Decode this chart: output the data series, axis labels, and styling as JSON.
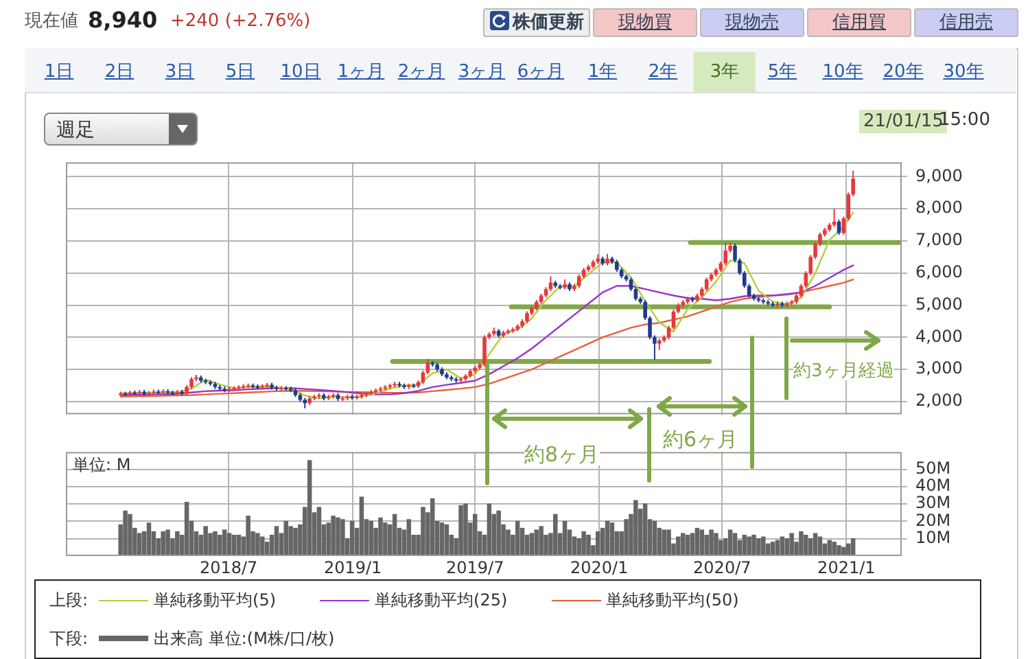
{
  "chart_data": [
    {
      "type": "candlestick",
      "legend": "bottom",
      "legend_title": "上段:",
      "grid": true,
      "tick_labels": "y",
      "marker": "none",
      "annotations": [
        "約8ヶ月",
        "約6ヶ月",
        "約3ヶ月経過",
        "現在値",
        "8,940",
        "+240 (+2.76%)",
        "株価更新",
        "現物買",
        "現物売",
        "信用買",
        "信用売",
        "1日",
        "2日",
        "3日",
        "5日",
        "10日",
        "1ヶ月",
        "2ヶ月",
        "3ヶ月",
        "6ヶ月",
        "1年",
        "2年",
        "3年",
        "5年",
        "10年",
        "20年",
        "30年",
        "週足",
        "21/01/15",
        "15:00"
      ],
      "xlim": [
        "2017-11-02",
        "2021-03-24"
      ],
      "xticks": [
        {
          "value": "2018-07-01",
          "label": null
        },
        {
          "value": "2019-01-01",
          "label": null
        },
        {
          "value": "2019-07-01",
          "label": null
        },
        {
          "value": "2020-01-01",
          "label": null
        },
        {
          "value": "2020-07-01",
          "label": null
        },
        {
          "value": "2021-01-01",
          "label": null
        }
      ],
      "ylim": [
        1600,
        9450
      ],
      "yticks": [
        {
          "value": 2000,
          "label": "2,000"
        },
        {
          "value": 3000,
          "label": "3,000"
        },
        {
          "value": 4000,
          "label": "4,000"
        },
        {
          "value": 5000,
          "label": "5,000"
        },
        {
          "value": 6000,
          "label": "6,000"
        },
        {
          "value": 7000,
          "label": "7,000"
        },
        {
          "value": 8000,
          "label": "8,000"
        },
        {
          "value": 9000,
          "label": "9,000"
        }
      ],
      "x": [
        "2018-01-22",
        "2018-01-29",
        "2018-02-05",
        "2018-02-12",
        "2018-02-19",
        "2018-02-26",
        "2018-03-05",
        "2018-03-12",
        "2018-03-19",
        "2018-03-26",
        "2018-04-02",
        "2018-04-09",
        "2018-04-16",
        "2018-04-23",
        "2018-04-30",
        "2018-05-07",
        "2018-05-14",
        "2018-05-21",
        "2018-05-28",
        "2018-06-04",
        "2018-06-11",
        "2018-06-18",
        "2018-06-25",
        "2018-07-02",
        "2018-07-09",
        "2018-07-16",
        "2018-07-23",
        "2018-07-30",
        "2018-08-06",
        "2018-08-13",
        "2018-08-20",
        "2018-08-27",
        "2018-09-03",
        "2018-09-10",
        "2018-09-17",
        "2018-09-24",
        "2018-10-01",
        "2018-10-08",
        "2018-10-15",
        "2018-10-22",
        "2018-10-29",
        "2018-11-05",
        "2018-11-12",
        "2018-11-19",
        "2018-11-26",
        "2018-12-03",
        "2018-12-10",
        "2018-12-17",
        "2018-12-24",
        "2018-12-31",
        "2019-01-07",
        "2019-01-14",
        "2019-01-21",
        "2019-01-28",
        "2019-02-04",
        "2019-02-11",
        "2019-02-18",
        "2019-02-25",
        "2019-03-04",
        "2019-03-11",
        "2019-03-18",
        "2019-03-25",
        "2019-04-01",
        "2019-04-08",
        "2019-04-15",
        "2019-04-22",
        "2019-04-29",
        "2019-05-06",
        "2019-05-13",
        "2019-05-20",
        "2019-05-27",
        "2019-06-03",
        "2019-06-10",
        "2019-06-17",
        "2019-06-24",
        "2019-07-01",
        "2019-07-08",
        "2019-07-15",
        "2019-07-22",
        "2019-07-29",
        "2019-08-05",
        "2019-08-12",
        "2019-08-19",
        "2019-08-26",
        "2019-09-02",
        "2019-09-09",
        "2019-09-16",
        "2019-09-23",
        "2019-09-30",
        "2019-10-07",
        "2019-10-14",
        "2019-10-21",
        "2019-10-28",
        "2019-11-04",
        "2019-11-11",
        "2019-11-18",
        "2019-11-25",
        "2019-12-02",
        "2019-12-09",
        "2019-12-16",
        "2019-12-23",
        "2019-12-30",
        "2020-01-06",
        "2020-01-13",
        "2020-01-20",
        "2020-01-27",
        "2020-02-03",
        "2020-02-10",
        "2020-02-17",
        "2020-02-24",
        "2020-03-02",
        "2020-03-09",
        "2020-03-16",
        "2020-03-23",
        "2020-03-30",
        "2020-04-06",
        "2020-04-13",
        "2020-04-20",
        "2020-04-27",
        "2020-05-04",
        "2020-05-11",
        "2020-05-18",
        "2020-05-25",
        "2020-06-01",
        "2020-06-08",
        "2020-06-15",
        "2020-06-22",
        "2020-06-29",
        "2020-07-06",
        "2020-07-13",
        "2020-07-20",
        "2020-07-27",
        "2020-08-03",
        "2020-08-10",
        "2020-08-17",
        "2020-08-24",
        "2020-08-31",
        "2020-09-07",
        "2020-09-14",
        "2020-09-21",
        "2020-09-28",
        "2020-10-05",
        "2020-10-12",
        "2020-10-19",
        "2020-10-26",
        "2020-11-02",
        "2020-11-09",
        "2020-11-16",
        "2020-11-23",
        "2020-11-30",
        "2020-12-07",
        "2020-12-14",
        "2020-12-21",
        "2020-12-28",
        "2021-01-04",
        "2021-01-11"
      ],
      "ohlc": [
        [
          2240,
          2310,
          2180,
          2250
        ],
        [
          2250,
          2300,
          2170,
          2230
        ],
        [
          2230,
          2340,
          2170,
          2280
        ],
        [
          2280,
          2340,
          2200,
          2260
        ],
        [
          2260,
          2360,
          2200,
          2300
        ],
        [
          2300,
          2360,
          2180,
          2240
        ],
        [
          2240,
          2330,
          2180,
          2270
        ],
        [
          2270,
          2370,
          2210,
          2310
        ],
        [
          2310,
          2370,
          2230,
          2290
        ],
        [
          2290,
          2380,
          2230,
          2320
        ],
        [
          2320,
          2380,
          2220,
          2280
        ],
        [
          2280,
          2340,
          2200,
          2260
        ],
        [
          2260,
          2360,
          2200,
          2300
        ],
        [
          2300,
          2360,
          2190,
          2250
        ],
        [
          2250,
          2510,
          2190,
          2450
        ],
        [
          2450,
          2760,
          2390,
          2700
        ],
        [
          2700,
          2830,
          2640,
          2750
        ],
        [
          2750,
          2810,
          2590,
          2650
        ],
        [
          2650,
          2710,
          2540,
          2600
        ],
        [
          2600,
          2660,
          2490,
          2550
        ],
        [
          2550,
          2610,
          2390,
          2450
        ],
        [
          2450,
          2510,
          2340,
          2400
        ],
        [
          2400,
          2460,
          2290,
          2350
        ],
        [
          2350,
          2460,
          2290,
          2400
        ],
        [
          2400,
          2480,
          2340,
          2420
        ],
        [
          2420,
          2510,
          2360,
          2450
        ],
        [
          2450,
          2540,
          2390,
          2480
        ],
        [
          2480,
          2560,
          2420,
          2500
        ],
        [
          2500,
          2560,
          2410,
          2470
        ],
        [
          2470,
          2530,
          2390,
          2450
        ],
        [
          2450,
          2540,
          2390,
          2480
        ],
        [
          2480,
          2580,
          2420,
          2520
        ],
        [
          2520,
          2580,
          2370,
          2430
        ],
        [
          2430,
          2490,
          2340,
          2400
        ],
        [
          2400,
          2480,
          2340,
          2420
        ],
        [
          2420,
          2480,
          2340,
          2400
        ],
        [
          2400,
          2460,
          2290,
          2350
        ],
        [
          2350,
          2410,
          2140,
          2200
        ],
        [
          2200,
          2260,
          1990,
          2050
        ],
        [
          2050,
          2110,
          1790,
          1950
        ],
        [
          1950,
          2160,
          1890,
          2100
        ],
        [
          2100,
          2210,
          2040,
          2150
        ],
        [
          2150,
          2260,
          2090,
          2200
        ],
        [
          2200,
          2260,
          2040,
          2100
        ],
        [
          2100,
          2210,
          2040,
          2150
        ],
        [
          2150,
          2260,
          2090,
          2200
        ],
        [
          2200,
          2260,
          2020,
          2080
        ],
        [
          2080,
          2160,
          2020,
          2100
        ],
        [
          2100,
          2210,
          2040,
          2150
        ],
        [
          2150,
          2210,
          2060,
          2120
        ],
        [
          2120,
          2210,
          2060,
          2150
        ],
        [
          2150,
          2260,
          2090,
          2200
        ],
        [
          2200,
          2310,
          2140,
          2250
        ],
        [
          2250,
          2360,
          2190,
          2300
        ],
        [
          2300,
          2410,
          2240,
          2350
        ],
        [
          2350,
          2460,
          2290,
          2400
        ],
        [
          2400,
          2510,
          2340,
          2450
        ],
        [
          2450,
          2560,
          2390,
          2500
        ],
        [
          2500,
          2610,
          2440,
          2550
        ],
        [
          2550,
          2610,
          2440,
          2500
        ],
        [
          2500,
          2560,
          2390,
          2450
        ],
        [
          2450,
          2560,
          2390,
          2500
        ],
        [
          2500,
          2560,
          2420,
          2480
        ],
        [
          2480,
          2660,
          2420,
          2600
        ],
        [
          2600,
          2960,
          2540,
          2900
        ],
        [
          2900,
          3330,
          2840,
          3200
        ],
        [
          3200,
          3260,
          3090,
          3150
        ],
        [
          3150,
          3210,
          2940,
          3000
        ],
        [
          3000,
          3060,
          2790,
          2850
        ],
        [
          2850,
          2910,
          2690,
          2750
        ],
        [
          2750,
          2810,
          2640,
          2700
        ],
        [
          2700,
          2760,
          2590,
          2650
        ],
        [
          2650,
          2760,
          2590,
          2700
        ],
        [
          2700,
          2860,
          2640,
          2800
        ],
        [
          2800,
          3010,
          2740,
          2950
        ],
        [
          2950,
          3110,
          2890,
          3050
        ],
        [
          3050,
          3210,
          2990,
          3150
        ],
        [
          3150,
          4060,
          3090,
          4000
        ],
        [
          4000,
          4160,
          3940,
          4100
        ],
        [
          4100,
          4300,
          4040,
          4200
        ],
        [
          4200,
          4260,
          3990,
          4050
        ],
        [
          4050,
          4210,
          3990,
          4150
        ],
        [
          4150,
          4260,
          4090,
          4200
        ],
        [
          4200,
          4310,
          4140,
          4250
        ],
        [
          4250,
          4410,
          4190,
          4350
        ],
        [
          4350,
          4560,
          4290,
          4500
        ],
        [
          4500,
          4810,
          4440,
          4750
        ],
        [
          4750,
          4960,
          4690,
          4900
        ],
        [
          4900,
          5160,
          4840,
          5100
        ],
        [
          5100,
          5360,
          5040,
          5300
        ],
        [
          5300,
          5560,
          5240,
          5500
        ],
        [
          5500,
          5900,
          5440,
          5700
        ],
        [
          5700,
          5760,
          5540,
          5600
        ],
        [
          5600,
          5660,
          5490,
          5550
        ],
        [
          5550,
          5800,
          5490,
          5650
        ],
        [
          5650,
          5710,
          5440,
          5500
        ],
        [
          5500,
          5660,
          5440,
          5600
        ],
        [
          5600,
          5960,
          5540,
          5900
        ],
        [
          5900,
          6160,
          5840,
          6100
        ],
        [
          6100,
          6260,
          6040,
          6200
        ],
        [
          6200,
          6410,
          6140,
          6350
        ],
        [
          6350,
          6580,
          6290,
          6450
        ],
        [
          6450,
          6510,
          6240,
          6300
        ],
        [
          6300,
          6600,
          6240,
          6450
        ],
        [
          6450,
          6510,
          6290,
          6350
        ],
        [
          6350,
          6410,
          6040,
          6100
        ],
        [
          6100,
          6160,
          5840,
          5900
        ],
        [
          5900,
          5960,
          5740,
          5800
        ],
        [
          5800,
          5860,
          5440,
          5500
        ],
        [
          5500,
          5560,
          5140,
          5200
        ],
        [
          5200,
          5260,
          5040,
          5100
        ],
        [
          5100,
          5160,
          4540,
          4600
        ],
        [
          4600,
          4660,
          3940,
          4000
        ],
        [
          4000,
          4060,
          3300,
          3800
        ],
        [
          3800,
          3960,
          3600,
          3900
        ],
        [
          3900,
          4060,
          3840,
          4000
        ],
        [
          4000,
          4360,
          3940,
          4300
        ],
        [
          4300,
          4860,
          4240,
          4800
        ],
        [
          4800,
          5060,
          4740,
          5000
        ],
        [
          5000,
          5160,
          4940,
          5100
        ],
        [
          5100,
          5260,
          5040,
          5200
        ],
        [
          5200,
          5260,
          5090,
          5150
        ],
        [
          5150,
          5360,
          5090,
          5300
        ],
        [
          5300,
          5560,
          5240,
          5500
        ],
        [
          5500,
          5860,
          5440,
          5800
        ],
        [
          5800,
          6010,
          5740,
          5950
        ],
        [
          5950,
          6160,
          5890,
          6100
        ],
        [
          6100,
          6360,
          6040,
          6300
        ],
        [
          6300,
          6950,
          6240,
          6700
        ],
        [
          6700,
          6950,
          6640,
          6850
        ],
        [
          6850,
          6910,
          6340,
          6400
        ],
        [
          6400,
          6460,
          5940,
          6000
        ],
        [
          6000,
          6060,
          5540,
          5600
        ],
        [
          5600,
          5660,
          5240,
          5300
        ],
        [
          5300,
          5360,
          5140,
          5200
        ],
        [
          5200,
          5260,
          5090,
          5150
        ],
        [
          5150,
          5210,
          5040,
          5100
        ],
        [
          5100,
          5160,
          4990,
          5050
        ],
        [
          5050,
          5110,
          4940,
          5000
        ],
        [
          5000,
          5110,
          4940,
          5050
        ],
        [
          5050,
          5110,
          4940,
          5000
        ],
        [
          5000,
          5110,
          4940,
          5050
        ],
        [
          5050,
          5160,
          4990,
          5100
        ],
        [
          5100,
          5360,
          5040,
          5300
        ],
        [
          5300,
          5660,
          5240,
          5600
        ],
        [
          5600,
          6060,
          5540,
          6000
        ],
        [
          6000,
          6560,
          5940,
          6500
        ],
        [
          6500,
          6960,
          6440,
          6900
        ],
        [
          6900,
          7260,
          6840,
          7200
        ],
        [
          7200,
          7410,
          7140,
          7350
        ],
        [
          7350,
          7560,
          7290,
          7500
        ],
        [
          7500,
          8000,
          7440,
          7600
        ],
        [
          7600,
          7660,
          7190,
          7250
        ],
        [
          7250,
          7760,
          7190,
          7700
        ],
        [
          7700,
          8510,
          7640,
          8450
        ],
        [
          8450,
          9180,
          8390,
          8940
        ]
      ],
      "colors": [
        "#e8383d",
        "#1f3b8c",
        "#e8383d",
        "#1f3b8c",
        "#e8383d",
        "#1f3b8c",
        "#e8383d",
        "#e8383d",
        "#1f3b8c",
        "#e8383d",
        "#1f3b8c",
        "#1f3b8c",
        "#e8383d",
        "#1f3b8c",
        "#e8383d",
        "#e8383d",
        "#e8383d",
        "#1f3b8c",
        "#1f3b8c",
        "#1f3b8c",
        "#1f3b8c",
        "#1f3b8c",
        "#1f3b8c",
        "#e8383d",
        "#e8383d",
        "#e8383d",
        "#e8383d",
        "#e8383d",
        "#1f3b8c",
        "#1f3b8c",
        "#e8383d",
        "#e8383d",
        "#1f3b8c",
        "#1f3b8c",
        "#e8383d",
        "#1f3b8c",
        "#1f3b8c",
        "#1f3b8c",
        "#1f3b8c",
        "#1f3b8c",
        "#e8383d",
        "#e8383d",
        "#e8383d",
        "#1f3b8c",
        "#e8383d",
        "#e8383d",
        "#1f3b8c",
        "#e8383d",
        "#e8383d",
        "#1f3b8c",
        "#e8383d",
        "#e8383d",
        "#e8383d",
        "#e8383d",
        "#e8383d",
        "#e8383d",
        "#e8383d",
        "#e8383d",
        "#e8383d",
        "#1f3b8c",
        "#1f3b8c",
        "#e8383d",
        "#1f3b8c",
        "#e8383d",
        "#e8383d",
        "#e8383d",
        "#1f3b8c",
        "#1f3b8c",
        "#1f3b8c",
        "#1f3b8c",
        "#1f3b8c",
        "#1f3b8c",
        "#e8383d",
        "#e8383d",
        "#e8383d",
        "#e8383d",
        "#e8383d",
        "#e8383d",
        "#e8383d",
        "#e8383d",
        "#1f3b8c",
        "#e8383d",
        "#e8383d",
        "#e8383d",
        "#e8383d",
        "#e8383d",
        "#e8383d",
        "#e8383d",
        "#e8383d",
        "#e8383d",
        "#e8383d",
        "#e8383d",
        "#1f3b8c",
        "#1f3b8c",
        "#e8383d",
        "#1f3b8c",
        "#e8383d",
        "#e8383d",
        "#e8383d",
        "#e8383d",
        "#e8383d",
        "#e8383d",
        "#1f3b8c",
        "#e8383d",
        "#1f3b8c",
        "#1f3b8c",
        "#1f3b8c",
        "#1f3b8c",
        "#1f3b8c",
        "#1f3b8c",
        "#1f3b8c",
        "#1f3b8c",
        "#1f3b8c",
        "#1f3b8c",
        "#e8383d",
        "#e8383d",
        "#e8383d",
        "#e8383d",
        "#e8383d",
        "#e8383d",
        "#e8383d",
        "#1f3b8c",
        "#e8383d",
        "#e8383d",
        "#e8383d",
        "#e8383d",
        "#e8383d",
        "#e8383d",
        "#e8383d",
        "#e8383d",
        "#1f3b8c",
        "#1f3b8c",
        "#1f3b8c",
        "#1f3b8c",
        "#1f3b8c",
        "#1f3b8c",
        "#1f3b8c",
        "#1f3b8c",
        "#1f3b8c",
        "#e8383d",
        "#1f3b8c",
        "#e8383d",
        "#e8383d",
        "#e8383d",
        "#e8383d",
        "#e8383d",
        "#e8383d",
        "#e8383d",
        "#e8383d",
        "#e8383d",
        "#e8383d",
        "#e8383d",
        "#1f3b8c",
        "#e8383d",
        "#e8383d",
        "#e8383d"
      ],
      "series": [
        {
          "type": "line",
          "name": "単純移動平均(5)",
          "color": "#b5cc3c",
          "x": [
            "2018-01-22",
            "2018-02-12",
            "2018-03-05",
            "2018-03-26",
            "2018-04-16",
            "2018-05-07",
            "2018-05-28",
            "2018-06-18",
            "2018-07-09",
            "2018-07-30",
            "2018-08-20",
            "2018-09-10",
            "2018-10-01",
            "2018-10-22",
            "2018-11-12",
            "2018-12-03",
            "2018-12-24",
            "2019-01-14",
            "2019-02-04",
            "2019-02-25",
            "2019-03-18",
            "2019-04-08",
            "2019-04-29",
            "2019-05-20",
            "2019-06-10",
            "2019-07-01",
            "2019-07-22",
            "2019-08-12",
            "2019-09-02",
            "2019-09-23",
            "2019-10-14",
            "2019-11-04",
            "2019-11-25",
            "2019-12-16",
            "2020-01-06",
            "2020-01-27",
            "2020-02-17",
            "2020-03-09",
            "2020-03-30",
            "2020-04-20",
            "2020-05-11",
            "2020-06-01",
            "2020-06-22",
            "2020-07-13",
            "2020-08-03",
            "2020-08-24",
            "2020-09-14",
            "2020-10-05",
            "2020-10-26",
            "2020-11-16",
            "2020-12-07",
            "2020-12-28",
            "2021-01-11"
          ],
          "values": [
            2260,
            2260,
            2270,
            2290,
            2290,
            2400,
            2680,
            2530,
            2410,
            2450,
            2480,
            2450,
            2400,
            2190,
            2090,
            2160,
            2130,
            2150,
            2250,
            2400,
            2500,
            2520,
            2880,
            3000,
            2720,
            2840,
            3470,
            4100,
            4240,
            4590,
            5160,
            5580,
            5590,
            5960,
            6340,
            6330,
            5870,
            5120,
            4460,
            4170,
            4880,
            5240,
            5730,
            6390,
            6310,
            5450,
            5110,
            5030,
            5230,
            6000,
            7030,
            7450,
            7880
          ]
        },
        {
          "type": "line",
          "name": "単純移動平均(25)",
          "color": "#9933cc",
          "x": [
            "2018-01-22",
            "2018-02-12",
            "2018-03-05",
            "2018-03-26",
            "2018-04-16",
            "2018-05-07",
            "2018-05-28",
            "2018-06-18",
            "2018-07-09",
            "2018-07-30",
            "2018-08-20",
            "2018-09-10",
            "2018-10-01",
            "2018-10-22",
            "2018-11-12",
            "2018-12-03",
            "2018-12-24",
            "2019-01-14",
            "2019-02-04",
            "2019-02-25",
            "2019-03-18",
            "2019-04-08",
            "2019-04-29",
            "2019-05-20",
            "2019-06-10",
            "2019-07-01",
            "2019-07-22",
            "2019-08-12",
            "2019-09-02",
            "2019-09-23",
            "2019-10-14",
            "2019-11-04",
            "2019-11-25",
            "2019-12-16",
            "2020-01-06",
            "2020-01-27",
            "2020-02-17",
            "2020-03-09",
            "2020-03-30",
            "2020-04-20",
            "2020-05-11",
            "2020-06-01",
            "2020-06-22",
            "2020-07-13",
            "2020-08-03",
            "2020-08-24",
            "2020-09-14",
            "2020-10-05",
            "2020-10-26",
            "2020-11-16",
            "2020-12-07",
            "2020-12-28",
            "2021-01-11"
          ],
          "values": [
            2200,
            2210,
            2220,
            2230,
            2240,
            2280,
            2320,
            2340,
            2350,
            2380,
            2400,
            2420,
            2420,
            2390,
            2360,
            2330,
            2290,
            2250,
            2220,
            2220,
            2260,
            2330,
            2450,
            2520,
            2580,
            2650,
            2850,
            3100,
            3350,
            3650,
            4000,
            4350,
            4700,
            5050,
            5400,
            5600,
            5600,
            5500,
            5400,
            5300,
            5220,
            5200,
            5150,
            5200,
            5280,
            5300,
            5300,
            5330,
            5400,
            5600,
            5850,
            6100,
            6240
          ]
        },
        {
          "type": "line",
          "name": "単純移動平均(50)",
          "color": "#e8603c",
          "x": [
            "2018-01-22",
            "2018-02-12",
            "2018-03-05",
            "2018-03-26",
            "2018-04-16",
            "2018-05-07",
            "2018-05-28",
            "2018-06-18",
            "2018-07-09",
            "2018-07-30",
            "2018-08-20",
            "2018-09-10",
            "2018-10-01",
            "2018-10-22",
            "2018-11-12",
            "2018-12-03",
            "2018-12-24",
            "2019-01-14",
            "2019-02-04",
            "2019-02-25",
            "2019-03-18",
            "2019-04-08",
            "2019-04-29",
            "2019-05-20",
            "2019-06-10",
            "2019-07-01",
            "2019-07-22",
            "2019-08-12",
            "2019-09-02",
            "2019-09-23",
            "2019-10-14",
            "2019-11-04",
            "2019-11-25",
            "2019-12-16",
            "2020-01-06",
            "2020-01-27",
            "2020-02-17",
            "2020-03-09",
            "2020-03-30",
            "2020-04-20",
            "2020-05-11",
            "2020-06-01",
            "2020-06-22",
            "2020-07-13",
            "2020-08-03",
            "2020-08-24",
            "2020-09-14",
            "2020-10-05",
            "2020-10-26",
            "2020-11-16",
            "2020-12-07",
            "2020-12-28",
            "2021-01-11"
          ],
          "values": [
            2150,
            2160,
            2170,
            2180,
            2190,
            2200,
            2220,
            2240,
            2260,
            2280,
            2300,
            2320,
            2330,
            2330,
            2320,
            2310,
            2300,
            2290,
            2280,
            2270,
            2270,
            2280,
            2320,
            2360,
            2400,
            2450,
            2550,
            2700,
            2850,
            3000,
            3200,
            3400,
            3600,
            3800,
            4000,
            4150,
            4300,
            4400,
            4450,
            4550,
            4650,
            4800,
            4950,
            5100,
            5200,
            5250,
            5300,
            5350,
            5400,
            5500,
            5600,
            5700,
            5800
          ]
        },
        {
          "type": "line",
          "color": "#80a848",
          "x": [
            "2019-03-01",
            "2020-06-12"
          ],
          "values": [
            3250,
            3250
          ]
        },
        {
          "type": "line",
          "color": "#80a848",
          "x": [
            "2019-08-24",
            "2020-12-07"
          ],
          "values": [
            4950,
            4950
          ]
        },
        {
          "type": "line",
          "color": "#80a848",
          "x": [
            "2020-05-15",
            "2021-03-20"
          ],
          "values": [
            6950,
            6950
          ]
        }
      ]
    },
    {
      "type": "bar",
      "legend": "bottom",
      "legend_title": "下段:",
      "grid": true,
      "ylabel": "単位: M",
      "xlim": [
        "2017-11-02",
        "2021-03-24"
      ],
      "xticks": [
        {
          "value": "2018-07-01",
          "label": "2018/7"
        },
        {
          "value": "2019-01-01",
          "label": "2019/1"
        },
        {
          "value": "2019-07-01",
          "label": "2019/7"
        },
        {
          "value": "2020-01-01",
          "label": "2020/1"
        },
        {
          "value": "2020-07-01",
          "label": "2020/7"
        },
        {
          "value": "2021-01-01",
          "label": "2021/1"
        }
      ],
      "ylim": [
        0,
        60
      ],
      "yticks": [
        {
          "value": 10,
          "label": "10M"
        },
        {
          "value": 20,
          "label": "20M"
        },
        {
          "value": 30,
          "label": "30M"
        },
        {
          "value": 40,
          "label": "40M"
        },
        {
          "value": 50,
          "label": "50M"
        }
      ],
      "x": [
        "2018-01-22",
        "2018-01-29",
        "2018-02-05",
        "2018-02-12",
        "2018-02-19",
        "2018-02-26",
        "2018-03-05",
        "2018-03-12",
        "2018-03-19",
        "2018-03-26",
        "2018-04-02",
        "2018-04-09",
        "2018-04-16",
        "2018-04-23",
        "2018-04-30",
        "2018-05-07",
        "2018-05-14",
        "2018-05-21",
        "2018-05-28",
        "2018-06-04",
        "2018-06-11",
        "2018-06-18",
        "2018-06-25",
        "2018-07-02",
        "2018-07-09",
        "2018-07-16",
        "2018-07-23",
        "2018-07-30",
        "2018-08-06",
        "2018-08-13",
        "2018-08-20",
        "2018-08-27",
        "2018-09-03",
        "2018-09-10",
        "2018-09-17",
        "2018-09-24",
        "2018-10-01",
        "2018-10-08",
        "2018-10-15",
        "2018-10-22",
        "2018-10-29",
        "2018-11-05",
        "2018-11-12",
        "2018-11-19",
        "2018-11-26",
        "2018-12-03",
        "2018-12-10",
        "2018-12-17",
        "2018-12-24",
        "2018-12-31",
        "2019-01-07",
        "2019-01-14",
        "2019-01-21",
        "2019-01-28",
        "2019-02-04",
        "2019-02-11",
        "2019-02-18",
        "2019-02-25",
        "2019-03-04",
        "2019-03-11",
        "2019-03-18",
        "2019-03-25",
        "2019-04-01",
        "2019-04-08",
        "2019-04-15",
        "2019-04-22",
        "2019-04-29",
        "2019-05-06",
        "2019-05-13",
        "2019-05-20",
        "2019-05-27",
        "2019-06-03",
        "2019-06-10",
        "2019-06-17",
        "2019-06-24",
        "2019-07-01",
        "2019-07-08",
        "2019-07-15",
        "2019-07-22",
        "2019-07-29",
        "2019-08-05",
        "2019-08-12",
        "2019-08-19",
        "2019-08-26",
        "2019-09-02",
        "2019-09-09",
        "2019-09-16",
        "2019-09-23",
        "2019-09-30",
        "2019-10-07",
        "2019-10-14",
        "2019-10-21",
        "2019-10-28",
        "2019-11-04",
        "2019-11-11",
        "2019-11-18",
        "2019-11-25",
        "2019-12-02",
        "2019-12-09",
        "2019-12-16",
        "2019-12-23",
        "2019-12-30",
        "2020-01-06",
        "2020-01-13",
        "2020-01-20",
        "2020-01-27",
        "2020-02-03",
        "2020-02-10",
        "2020-02-17",
        "2020-02-24",
        "2020-03-02",
        "2020-03-09",
        "2020-03-16",
        "2020-03-23",
        "2020-03-30",
        "2020-04-06",
        "2020-04-13",
        "2020-04-20",
        "2020-04-27",
        "2020-05-04",
        "2020-05-11",
        "2020-05-18",
        "2020-05-25",
        "2020-06-01",
        "2020-06-08",
        "2020-06-15",
        "2020-06-22",
        "2020-06-29",
        "2020-07-06",
        "2020-07-13",
        "2020-07-20",
        "2020-07-27",
        "2020-08-03",
        "2020-08-10",
        "2020-08-17",
        "2020-08-24",
        "2020-08-31",
        "2020-09-07",
        "2020-09-14",
        "2020-09-21",
        "2020-09-28",
        "2020-10-05",
        "2020-10-12",
        "2020-10-19",
        "2020-10-26",
        "2020-11-02",
        "2020-11-09",
        "2020-11-16",
        "2020-11-23",
        "2020-11-30",
        "2020-12-07",
        "2020-12-14",
        "2020-12-21",
        "2020-12-28",
        "2021-01-04",
        "2021-01-11"
      ],
      "series": [
        {
          "name": "出来高 単位:(M株/口/枚)",
          "color": "#666666",
          "values": [
            18,
            26,
            24,
            16,
            13,
            14,
            19,
            14,
            10,
            14,
            15,
            10,
            14,
            12,
            31,
            20,
            14,
            12,
            17,
            13,
            14,
            12,
            15,
            13,
            12,
            12,
            11,
            23,
            14,
            13,
            11,
            8,
            12,
            17,
            13,
            20,
            17,
            16,
            18,
            28,
            55,
            25,
            28,
            18,
            19,
            23,
            22,
            21,
            10,
            20,
            16,
            34,
            21,
            20,
            16,
            22,
            19,
            18,
            24,
            16,
            15,
            21,
            12,
            12,
            28,
            25,
            33,
            20,
            19,
            18,
            12,
            10,
            29,
            30,
            19,
            24,
            14,
            12,
            30,
            24,
            26,
            18,
            15,
            12,
            20,
            16,
            12,
            13,
            15,
            17,
            12,
            13,
            24,
            13,
            20,
            15,
            11,
            10,
            14,
            12,
            6,
            14,
            16,
            20,
            19,
            14,
            14,
            21,
            24,
            32,
            27,
            30,
            21,
            20,
            16,
            15,
            15,
            7,
            11,
            13,
            12,
            13,
            16,
            15,
            12,
            15,
            13,
            9,
            10,
            15,
            13,
            9,
            12,
            11,
            12,
            10,
            11,
            7,
            8,
            9,
            11,
            10,
            13,
            8,
            14,
            12,
            10,
            13,
            11,
            7,
            9,
            8,
            6,
            5,
            7,
            10
          ]
        }
      ]
    }
  ]
}
